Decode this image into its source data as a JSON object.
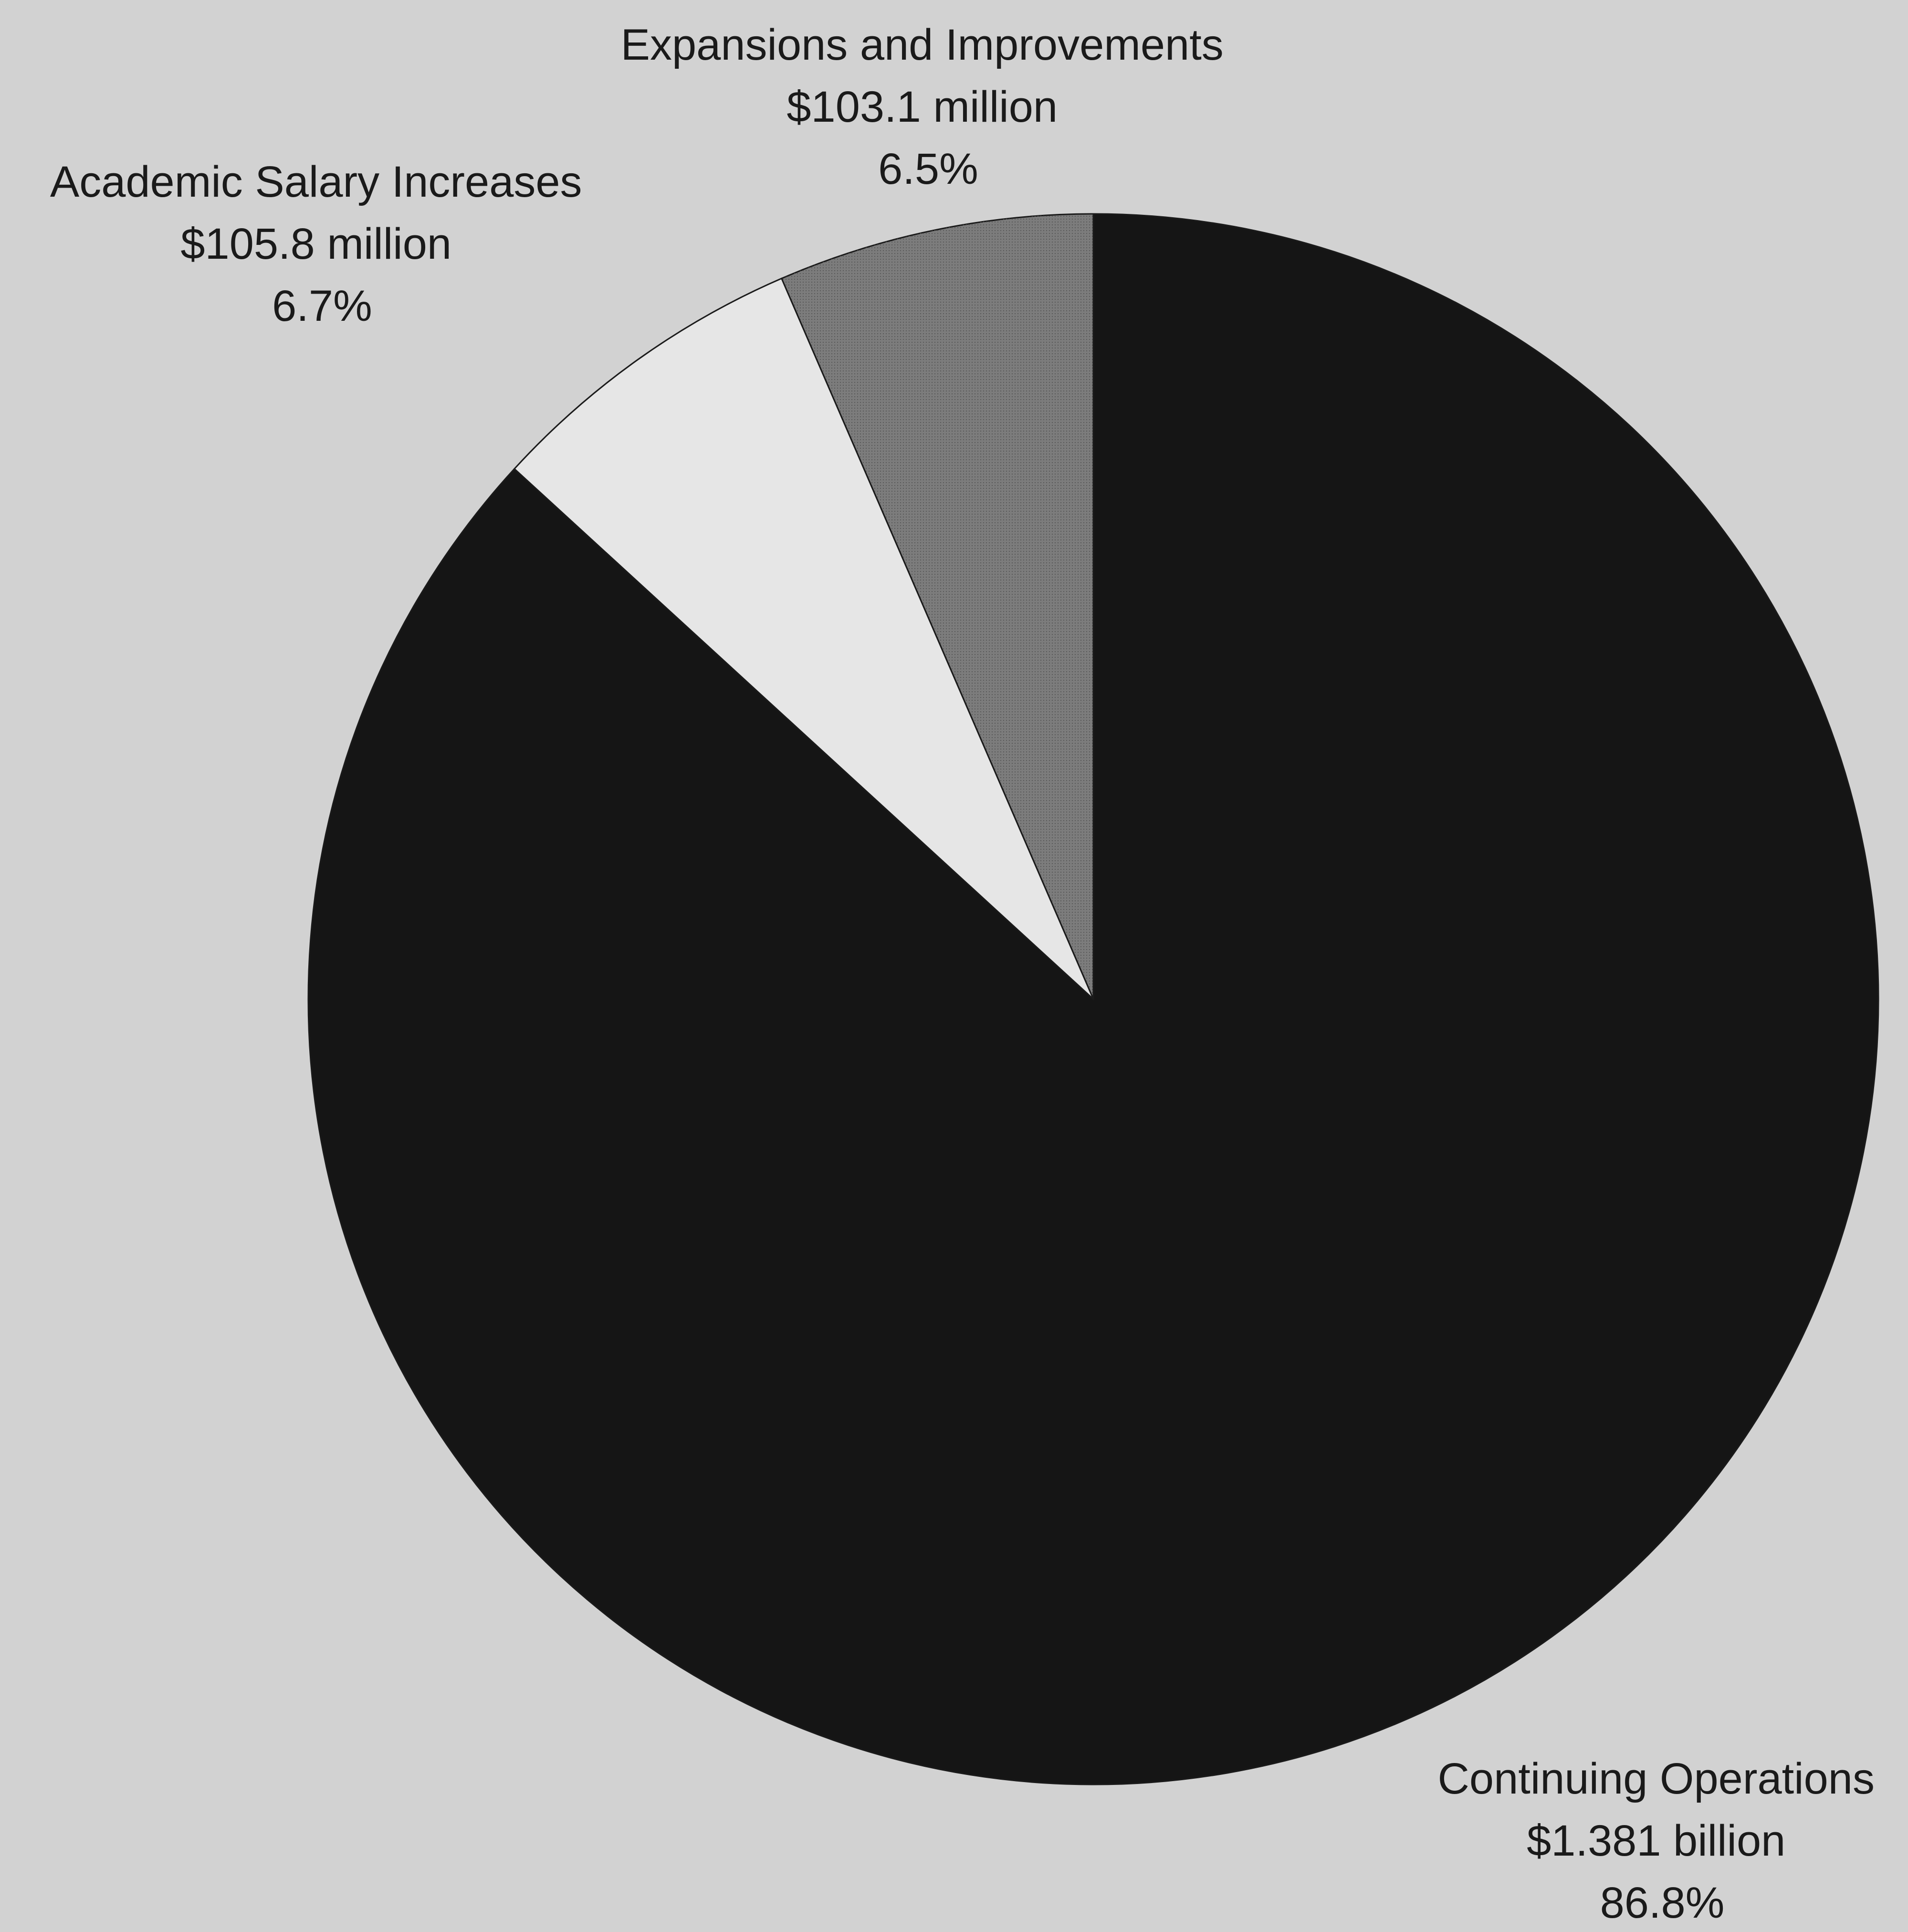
{
  "chart_data": {
    "type": "pie",
    "start_angle_deg": 0,
    "direction": "counterclockwise",
    "slices": [
      {
        "category": "Expansions and Improvements",
        "amount": "$103.1 million",
        "percent_label": "6.5%",
        "value": 6.5,
        "color": "#7c7c7c"
      },
      {
        "category": "Academic Salary Increases",
        "amount": "$105.8 million",
        "percent_label": "6.7%",
        "value": 6.7,
        "color": "#e6e6e6"
      },
      {
        "category": "Continuing Operations",
        "amount": "$1.381 billion",
        "percent_label": "86.8%",
        "value": 86.8,
        "color": "#151515"
      }
    ]
  }
}
